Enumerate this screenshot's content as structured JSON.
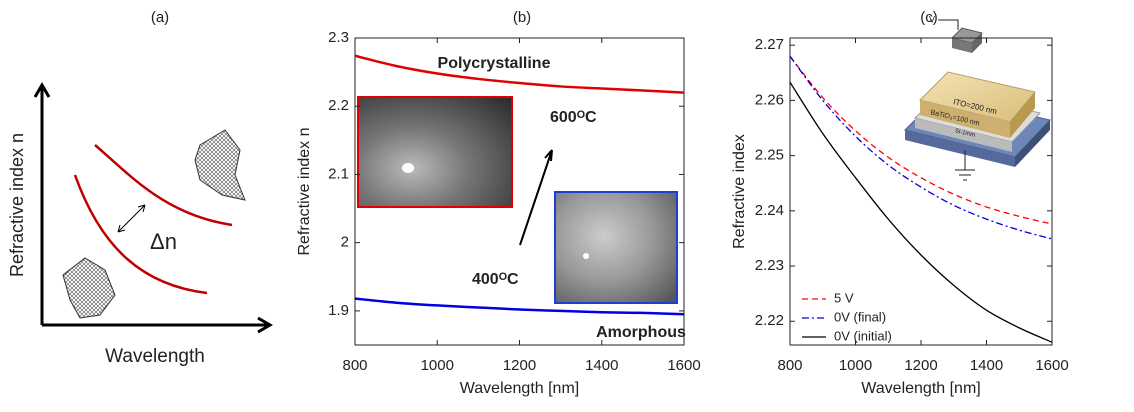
{
  "chart_data": [
    {
      "type": "schematic",
      "panel_label": "(a)",
      "xlabel": "Wavelength",
      "ylabel": "Refractive index n",
      "annotation": "Δn",
      "color": "#c00000"
    },
    {
      "type": "line",
      "panel_label": "(b)",
      "xlabel": "Wavelength [nm]",
      "ylabel": "Refractive index n",
      "x": [
        800,
        900,
        1000,
        1100,
        1200,
        1300,
        1400,
        1500,
        1600
      ],
      "series": [
        {
          "name": "Polycrystalline",
          "color": "#e00000",
          "dash": "solid",
          "values": [
            2.274,
            2.259,
            2.248,
            2.24,
            2.234,
            2.229,
            2.226,
            2.223,
            2.22
          ]
        },
        {
          "name": "Amorphous",
          "color": "#0000e0",
          "dash": "solid",
          "values": [
            1.918,
            1.912,
            1.908,
            1.905,
            1.902,
            1.9,
            1.898,
            1.897,
            1.895
          ]
        }
      ],
      "xlim": [
        800,
        1600
      ],
      "ylim": [
        1.85,
        2.3
      ],
      "xticks": [
        800,
        1000,
        1200,
        1400,
        1600
      ],
      "yticks": [
        1.9,
        2,
        2.1,
        2.2,
        2.3
      ],
      "annotations": [
        "600ᴼC",
        "400ᴼC"
      ]
    },
    {
      "type": "line",
      "panel_label": "(c)",
      "xlabel": "Wavelength [nm]",
      "ylabel": "Refractive index",
      "x": [
        800,
        900,
        1000,
        1100,
        1200,
        1300,
        1400,
        1500,
        1600
      ],
      "series": [
        {
          "name": "5 V",
          "color": "#ff0000",
          "dash": "dashed",
          "values": [
            2.268,
            2.2605,
            2.2545,
            2.2497,
            2.246,
            2.243,
            2.2407,
            2.239,
            2.2376
          ]
        },
        {
          "name": "0V (final)",
          "color": "#0000dd",
          "dash": "dashdot",
          "values": [
            2.268,
            2.26,
            2.2535,
            2.2483,
            2.2443,
            2.241,
            2.2385,
            2.2365,
            2.2349
          ]
        },
        {
          "name": "0V (initial)",
          "color": "#000000",
          "dash": "solid",
          "values": [
            2.2633,
            2.254,
            2.246,
            2.2385,
            2.232,
            2.2265,
            2.222,
            2.2188,
            2.2162
          ]
        }
      ],
      "xlim": [
        800,
        1600
      ],
      "ylim": [
        2.2157,
        2.2713
      ],
      "xticks": [
        800,
        1000,
        1200,
        1400,
        1600
      ],
      "yticks": [
        2.22,
        2.23,
        2.24,
        2.25,
        2.26,
        2.27
      ],
      "legend": "lower left",
      "inset_labels": [
        "V",
        "ITO=200 nm",
        "BaTiO₃=100 nm",
        "Si-1mm"
      ]
    }
  ]
}
